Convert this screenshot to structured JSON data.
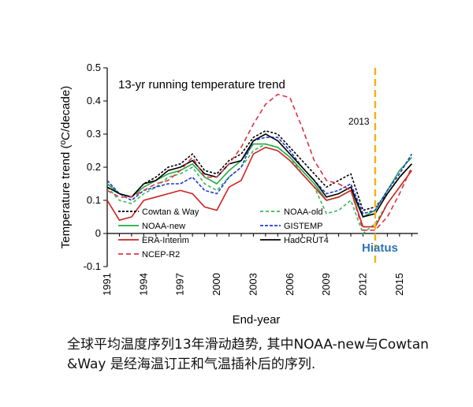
{
  "chart_data": {
    "type": "line",
    "title": "13-yr running temperature trend",
    "xlabel": "End-year",
    "ylabel": "Temperature trend (ºC/decade)",
    "xlim": [
      1991,
      2016.5
    ],
    "ylim": [
      -0.1,
      0.5
    ],
    "xticks": [
      "1991",
      "1994",
      "1997",
      "2000",
      "2003",
      "2006",
      "2009",
      "2012",
      "2015"
    ],
    "yticks": [
      "-0.1",
      "0",
      "0.1",
      "0.2",
      "0.3",
      "0.4",
      "0.5"
    ],
    "grid": false,
    "legend_position": "lower-left",
    "x": [
      1991,
      1992,
      1993,
      1994,
      1995,
      1996,
      1997,
      1998,
      1999,
      2000,
      2001,
      2002,
      2003,
      2004,
      2005,
      2006,
      2007,
      2008,
      2009,
      2010,
      2011,
      2012,
      2013,
      2014,
      2015,
      2016
    ],
    "series": [
      {
        "name": "Cowtan & Way",
        "color": "#000000",
        "dash": "3,2",
        "values": [
          0.15,
          0.12,
          0.11,
          0.15,
          0.17,
          0.2,
          0.21,
          0.24,
          0.19,
          0.18,
          0.22,
          0.24,
          0.29,
          0.31,
          0.3,
          0.26,
          0.22,
          0.18,
          0.14,
          0.16,
          0.18,
          0.07,
          0.08,
          0.12,
          0.17,
          0.21
        ]
      },
      {
        "name": "NOAA-old",
        "color": "#33bb55",
        "dash": "4,3",
        "values": [
          0.14,
          0.1,
          0.09,
          0.12,
          0.14,
          0.17,
          0.18,
          0.2,
          0.15,
          0.13,
          0.17,
          0.2,
          0.25,
          0.27,
          0.26,
          0.23,
          0.18,
          0.14,
          0.06,
          0.07,
          0.1,
          0.0,
          0.03,
          0.09,
          0.14,
          0.19
        ]
      },
      {
        "name": "NOAA-new",
        "color": "#22aa44",
        "dash": "",
        "values": [
          0.15,
          0.12,
          0.11,
          0.14,
          0.16,
          0.18,
          0.19,
          0.21,
          0.17,
          0.15,
          0.19,
          0.22,
          0.27,
          0.27,
          0.26,
          0.23,
          0.19,
          0.15,
          0.1,
          0.11,
          0.13,
          0.05,
          0.07,
          0.13,
          0.19,
          0.23
        ]
      },
      {
        "name": "GISTEMP",
        "color": "#1f3bd0",
        "dash": "4,2",
        "values": [
          0.16,
          0.12,
          0.1,
          0.13,
          0.14,
          0.15,
          0.15,
          0.17,
          0.13,
          0.12,
          0.17,
          0.2,
          0.28,
          0.29,
          0.29,
          0.25,
          0.2,
          0.16,
          0.12,
          0.13,
          0.15,
          0.06,
          0.07,
          0.13,
          0.18,
          0.24
        ]
      },
      {
        "name": "ERA-Interim",
        "color": "#cc2222",
        "dash": "",
        "values": [
          0.1,
          0.04,
          0.05,
          0.1,
          0.11,
          0.12,
          0.13,
          0.12,
          0.08,
          0.07,
          0.14,
          0.16,
          0.24,
          0.26,
          0.25,
          0.22,
          0.18,
          0.14,
          0.1,
          0.11,
          0.13,
          0.02,
          0.02,
          0.09,
          0.14,
          0.19
        ]
      },
      {
        "name": "HadCRUT4",
        "color": "#000000",
        "dash": "",
        "values": [
          0.14,
          0.12,
          0.11,
          0.15,
          0.16,
          0.19,
          0.2,
          0.22,
          0.18,
          0.17,
          0.21,
          0.22,
          0.28,
          0.3,
          0.28,
          0.24,
          0.2,
          0.16,
          0.11,
          0.12,
          0.14,
          0.05,
          0.06,
          0.12,
          0.17,
          0.21
        ]
      },
      {
        "name": "NCEP-R2",
        "color": "#dd3344",
        "dash": "6,4",
        "values": [
          0.13,
          0.11,
          0.11,
          0.13,
          0.15,
          0.16,
          0.19,
          0.23,
          0.17,
          0.17,
          0.21,
          0.26,
          0.33,
          0.39,
          0.42,
          0.41,
          0.32,
          0.22,
          0.16,
          0.15,
          0.13,
          0.01,
          0.01,
          0.05,
          0.12,
          0.2
        ]
      }
    ],
    "vline": {
      "x": 2013,
      "label": "2013",
      "color": "#f2b21c"
    },
    "annotation": {
      "text": "Hiatus",
      "x": 2013,
      "y": -0.04
    }
  },
  "caption": "全球平均温度序列13年滑动趋势, 其中NOAA-new与Cowtan &Way 是经海温订正和气温插补后的序列."
}
